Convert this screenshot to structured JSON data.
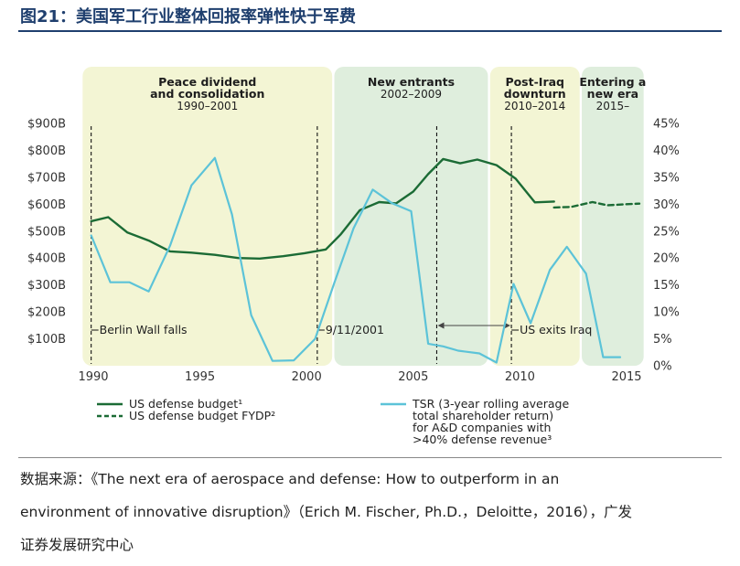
{
  "figure_title": "图21：美国军工行业整体回报率弹性快于军费",
  "source_lines": [
    "数据来源：《The next era of aerospace and defense: How to outperform in an",
    "environment of innovative disruption》（Erich M. Fischer, Ph.D.，Deloitte，2016），广发",
    "证券发展研究中心"
  ],
  "chart_data": {
    "type": "line",
    "title": "",
    "xlabel": "",
    "ylabel_left": "",
    "ylabel_right": "",
    "x_ticks": [
      1990,
      1995,
      2000,
      2005,
      2010,
      2015
    ],
    "y_left_ticks": [
      "$100B",
      "$200B",
      "$300B",
      "$400B",
      "$500B",
      "$600B",
      "$700B",
      "$800B",
      "$900B"
    ],
    "y_left_tick_values": [
      100,
      200,
      300,
      400,
      500,
      600,
      700,
      800,
      900
    ],
    "y_right_ticks": [
      "0%",
      "5%",
      "10%",
      "15%",
      "20%",
      "25%",
      "30%",
      "35%",
      "40%",
      "45%"
    ],
    "y_right_tick_values": [
      0,
      5,
      10,
      15,
      20,
      25,
      30,
      35,
      40,
      45
    ],
    "xlim": [
      1989.4,
      2015.9
    ],
    "ylim_left": [
      0,
      900
    ],
    "ylim_right": [
      0,
      45
    ],
    "grid": false,
    "legend_position": "bottom",
    "periods": [
      {
        "title": "Peace dividend\nand consolidation",
        "years": "1990–2001",
        "from": 1989.5,
        "to": 2001.2,
        "color": "#f3f5d4"
      },
      {
        "title": "New entrants",
        "years": "2002–2009",
        "from": 2001.3,
        "to": 2008.5,
        "color": "#dfeedd"
      },
      {
        "title": "Post-Iraq\ndownturn",
        "years": "2010–2014",
        "from": 2008.6,
        "to": 2012.8,
        "color": "#f3f5d4"
      },
      {
        "title": "Entering a\nnew era",
        "years": "2015–",
        "from": 2012.9,
        "to": 2015.8,
        "color": "#dfeedd"
      }
    ],
    "events": [
      {
        "label": "Berlin Wall falls",
        "x": 1989.9
      },
      {
        "label": "9/11/2001",
        "x": 2000.5
      },
      {
        "label": "US exits Iraq",
        "x": 2009.6
      }
    ],
    "iraq_span": [
      2006.1,
      2009.6
    ],
    "series": [
      {
        "name": "US defense budget¹",
        "axis": "left",
        "color": "#1b6b35",
        "style": "solid",
        "x": [
          1989.9,
          1990.7,
          1991.6,
          1992.6,
          1993.6,
          1994.6,
          1995.7,
          1996.8,
          1997.8,
          1998.9,
          1999.9,
          2000.9,
          2001.6,
          2002.5,
          2003.4,
          2004.2,
          2005.0,
          2005.7,
          2006.4,
          2007.2,
          2008.0,
          2008.9,
          2009.8,
          2010.7,
          2011.6
        ],
        "y": [
          537,
          552,
          495,
          465,
          425,
          420,
          412,
          400,
          398,
          407,
          418,
          432,
          488,
          578,
          608,
          603,
          647,
          712,
          768,
          752,
          766,
          745,
          695,
          607,
          610
        ]
      },
      {
        "name": "US defense budget FYDP²",
        "axis": "left",
        "color": "#1b6b35",
        "style": "dashed",
        "x": [
          2011.6,
          2012.4,
          2013.4,
          2014.1,
          2015.0,
          2015.6
        ],
        "y": [
          588,
          590,
          608,
          596,
          600,
          602
        ]
      },
      {
        "name": "TSR (3-year rolling average\ntotal shareholder return)\nfor A&D companies with\n>40% defense revenue³",
        "axis": "right",
        "color": "#5cc3d8",
        "style": "solid",
        "x": [
          1989.9,
          1990.8,
          1991.7,
          1992.6,
          1993.6,
          1994.6,
          1995.7,
          1996.5,
          1997.4,
          1998.4,
          1999.4,
          2000.4,
          2001.3,
          2002.2,
          2003.1,
          2004.0,
          2004.9,
          2005.7,
          2006.4,
          2007.1,
          2008.1,
          2008.9,
          2009.7,
          2010.5,
          2011.4,
          2012.2,
          2013.1,
          2013.9,
          2014.7
        ],
        "y": [
          24.2,
          15.5,
          15.5,
          13.8,
          22.3,
          33.5,
          38.6,
          28.1,
          9.4,
          0.9,
          1.0,
          5.0,
          15.4,
          25.5,
          32.7,
          30.2,
          28.7,
          4.1,
          3.6,
          2.8,
          2.3,
          0.6,
          15.2,
          7.9,
          17.8,
          22.1,
          17.1,
          1.6,
          1.6
        ]
      }
    ]
  }
}
